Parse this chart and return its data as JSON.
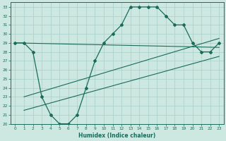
{
  "xlabel": "Humidex (Indice chaleur)",
  "ylabel": "",
  "bg_color": "#cce8e0",
  "grid_color": "#a8cfc8",
  "line_color": "#1a6b5a",
  "xlim": [
    -0.5,
    23.5
  ],
  "ylim": [
    20,
    33.5
  ],
  "xticks": [
    0,
    1,
    2,
    3,
    4,
    5,
    6,
    7,
    8,
    9,
    10,
    11,
    12,
    13,
    14,
    15,
    16,
    17,
    18,
    19,
    20,
    21,
    22,
    23
  ],
  "yticks": [
    20,
    21,
    22,
    23,
    24,
    25,
    26,
    27,
    28,
    29,
    30,
    31,
    32,
    33
  ],
  "curve_x": [
    0,
    1,
    2,
    3,
    4,
    5,
    6,
    7,
    8,
    9,
    10,
    11,
    12,
    13,
    14,
    15,
    16,
    17,
    18,
    19,
    20,
    21,
    22,
    23
  ],
  "curve_y": [
    29,
    29,
    28,
    23,
    21,
    20,
    20,
    21,
    24,
    27,
    29,
    30,
    31,
    33,
    33,
    33,
    33,
    32,
    31,
    31,
    29,
    28,
    28,
    29
  ],
  "line1_x": [
    0,
    23
  ],
  "line1_y": [
    29.0,
    28.5
  ],
  "line2_x": [
    1,
    23
  ],
  "line2_y": [
    23.0,
    29.5
  ],
  "line3_x": [
    1,
    23
  ],
  "line3_y": [
    21.5,
    27.5
  ]
}
